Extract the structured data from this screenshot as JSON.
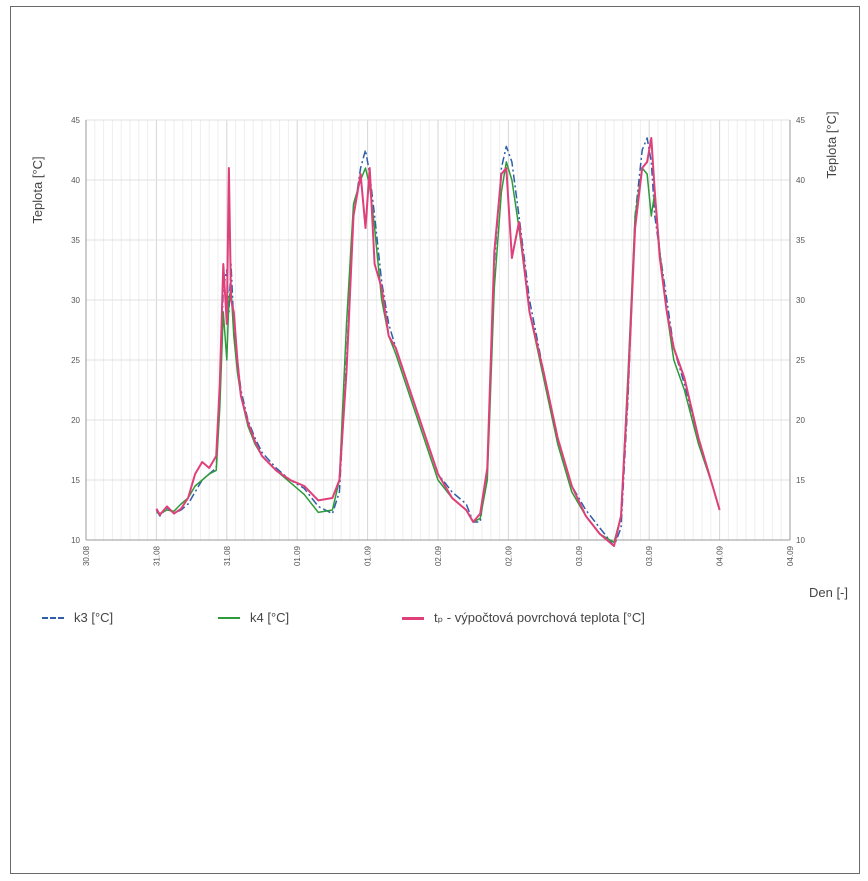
{
  "chart_data": {
    "type": "line",
    "ylabel_left": "Teplota [°C]",
    "ylabel_right": "Teplota [°C]",
    "xlabel": "Den [-]",
    "ylim": [
      10,
      45
    ],
    "yticks": [
      10,
      15,
      20,
      25,
      30,
      35,
      40,
      45
    ],
    "xlim": [
      0,
      10
    ],
    "xticks": [
      {
        "x": 0,
        "label": "30.08"
      },
      {
        "x": 1,
        "label": "31.08"
      },
      {
        "x": 2,
        "label": "31.08"
      },
      {
        "x": 3,
        "label": "01.09"
      },
      {
        "x": 4,
        "label": "01.09"
      },
      {
        "x": 5,
        "label": "02.09"
      },
      {
        "x": 6,
        "label": "02.09"
      },
      {
        "x": 7,
        "label": "03.09"
      },
      {
        "x": 8,
        "label": "03.09"
      },
      {
        "x": 9,
        "label": "04.09"
      },
      {
        "x": 10,
        "label": "04.09"
      }
    ],
    "grid": true,
    "legend_position": "bottom",
    "series": [
      {
        "name": "k3 [°C]",
        "color": "#2e5fa8",
        "dash": "8,3,2,3",
        "x": [
          1.0,
          1.05,
          1.15,
          1.25,
          1.35,
          1.45,
          1.55,
          1.65,
          1.75,
          1.85,
          1.9,
          1.95,
          2.0,
          2.03,
          2.06,
          2.1,
          2.15,
          2.2,
          2.3,
          2.4,
          2.5,
          2.7,
          2.9,
          3.1,
          3.3,
          3.5,
          3.6,
          3.7,
          3.8,
          3.9,
          3.97,
          4.03,
          4.1,
          4.2,
          4.3,
          4.4,
          4.6,
          4.8,
          5.0,
          5.2,
          5.4,
          5.5,
          5.6,
          5.7,
          5.8,
          5.9,
          5.97,
          6.05,
          6.15,
          6.3,
          6.5,
          6.7,
          6.9,
          7.1,
          7.3,
          7.5,
          7.6,
          7.7,
          7.8,
          7.9,
          7.97,
          8.03,
          8.08,
          8.15,
          8.25,
          8.35,
          8.5,
          8.7,
          8.9,
          9.0
        ],
        "values": [
          12.5,
          12.0,
          12.7,
          12.2,
          12.5,
          13.0,
          14.0,
          15.0,
          15.5,
          16.0,
          22.0,
          31.0,
          32.5,
          29.0,
          33.0,
          28.0,
          25.0,
          22.5,
          20.0,
          18.5,
          17.3,
          16.0,
          15.0,
          14.3,
          12.8,
          12.2,
          14.0,
          25.0,
          37.0,
          41.0,
          42.5,
          40.5,
          37.0,
          31.5,
          28.0,
          26.0,
          22.5,
          19.0,
          15.5,
          14.0,
          13.0,
          11.5,
          11.5,
          16.0,
          33.0,
          41.0,
          42.8,
          41.5,
          37.0,
          30.0,
          24.0,
          18.5,
          14.5,
          12.5,
          11.0,
          9.5,
          11.0,
          22.0,
          37.0,
          42.5,
          43.5,
          41.5,
          37.0,
          34.0,
          30.0,
          26.0,
          23.0,
          18.5,
          14.5,
          12.5
        ]
      },
      {
        "name": "k4 [°C]",
        "color": "#2e9a3a",
        "dash": "",
        "x": [
          1.0,
          1.05,
          1.15,
          1.25,
          1.35,
          1.45,
          1.55,
          1.65,
          1.75,
          1.85,
          1.9,
          1.95,
          2.0,
          2.03,
          2.06,
          2.1,
          2.15,
          2.2,
          2.3,
          2.4,
          2.5,
          2.7,
          2.9,
          3.1,
          3.3,
          3.5,
          3.6,
          3.7,
          3.8,
          3.9,
          3.97,
          4.03,
          4.1,
          4.2,
          4.3,
          4.4,
          4.6,
          4.8,
          5.0,
          5.2,
          5.4,
          5.5,
          5.6,
          5.7,
          5.8,
          5.9,
          5.97,
          6.05,
          6.15,
          6.3,
          6.5,
          6.7,
          6.9,
          7.1,
          7.3,
          7.5,
          7.6,
          7.7,
          7.8,
          7.9,
          7.97,
          8.03,
          8.08,
          8.15,
          8.25,
          8.35,
          8.5,
          8.7,
          8.9,
          9.0
        ],
        "values": [
          12.3,
          12.2,
          12.5,
          12.4,
          13.0,
          13.5,
          14.5,
          15.0,
          15.5,
          15.8,
          21.0,
          29.0,
          25.0,
          30.0,
          31.0,
          27.0,
          24.0,
          22.0,
          19.5,
          18.0,
          17.0,
          15.8,
          14.8,
          13.8,
          12.3,
          12.5,
          15.0,
          28.0,
          38.0,
          40.0,
          41.0,
          39.5,
          36.0,
          30.0,
          27.0,
          25.5,
          22.0,
          18.5,
          15.0,
          13.5,
          12.5,
          11.5,
          11.8,
          15.0,
          31.0,
          39.0,
          41.5,
          40.0,
          36.0,
          29.0,
          23.5,
          18.0,
          14.0,
          12.0,
          10.5,
          9.8,
          12.0,
          24.0,
          37.0,
          41.0,
          40.5,
          37.0,
          39.0,
          34.0,
          29.0,
          25.0,
          22.5,
          18.0,
          14.5,
          12.5
        ]
      },
      {
        "name": "tₚ - výpočtová povrchová teplota [°C]",
        "color": "#e0407a",
        "dash": "",
        "x": [
          1.0,
          1.05,
          1.15,
          1.25,
          1.35,
          1.45,
          1.55,
          1.65,
          1.75,
          1.85,
          1.9,
          1.95,
          2.0,
          2.03,
          2.06,
          2.1,
          2.15,
          2.2,
          2.3,
          2.4,
          2.5,
          2.7,
          2.9,
          3.1,
          3.3,
          3.5,
          3.6,
          3.7,
          3.8,
          3.9,
          3.97,
          4.03,
          4.1,
          4.2,
          4.3,
          4.4,
          4.6,
          4.8,
          5.0,
          5.2,
          5.4,
          5.5,
          5.6,
          5.7,
          5.8,
          5.9,
          5.97,
          6.05,
          6.15,
          6.3,
          6.5,
          6.7,
          6.9,
          7.1,
          7.3,
          7.5,
          7.6,
          7.7,
          7.8,
          7.9,
          7.97,
          8.03,
          8.08,
          8.15,
          8.25,
          8.35,
          8.5,
          8.7,
          8.9,
          9.0
        ],
        "values": [
          12.6,
          12.1,
          12.8,
          12.2,
          12.6,
          13.5,
          15.5,
          16.5,
          16.0,
          17.0,
          23.0,
          33.0,
          28.0,
          41.0,
          30.0,
          29.0,
          25.0,
          22.0,
          19.8,
          18.2,
          17.0,
          15.8,
          15.0,
          14.5,
          13.3,
          13.5,
          15.0,
          24.0,
          37.0,
          40.5,
          36.0,
          41.0,
          33.0,
          31.0,
          27.0,
          26.0,
          22.5,
          19.0,
          15.5,
          13.5,
          12.5,
          11.5,
          12.2,
          16.0,
          34.0,
          40.5,
          41.0,
          33.5,
          36.5,
          29.0,
          24.0,
          18.5,
          14.5,
          12.0,
          10.5,
          9.5,
          12.0,
          23.0,
          36.0,
          41.0,
          41.5,
          43.5,
          39.0,
          33.5,
          29.0,
          26.0,
          23.5,
          18.5,
          14.5,
          12.5
        ]
      }
    ]
  }
}
